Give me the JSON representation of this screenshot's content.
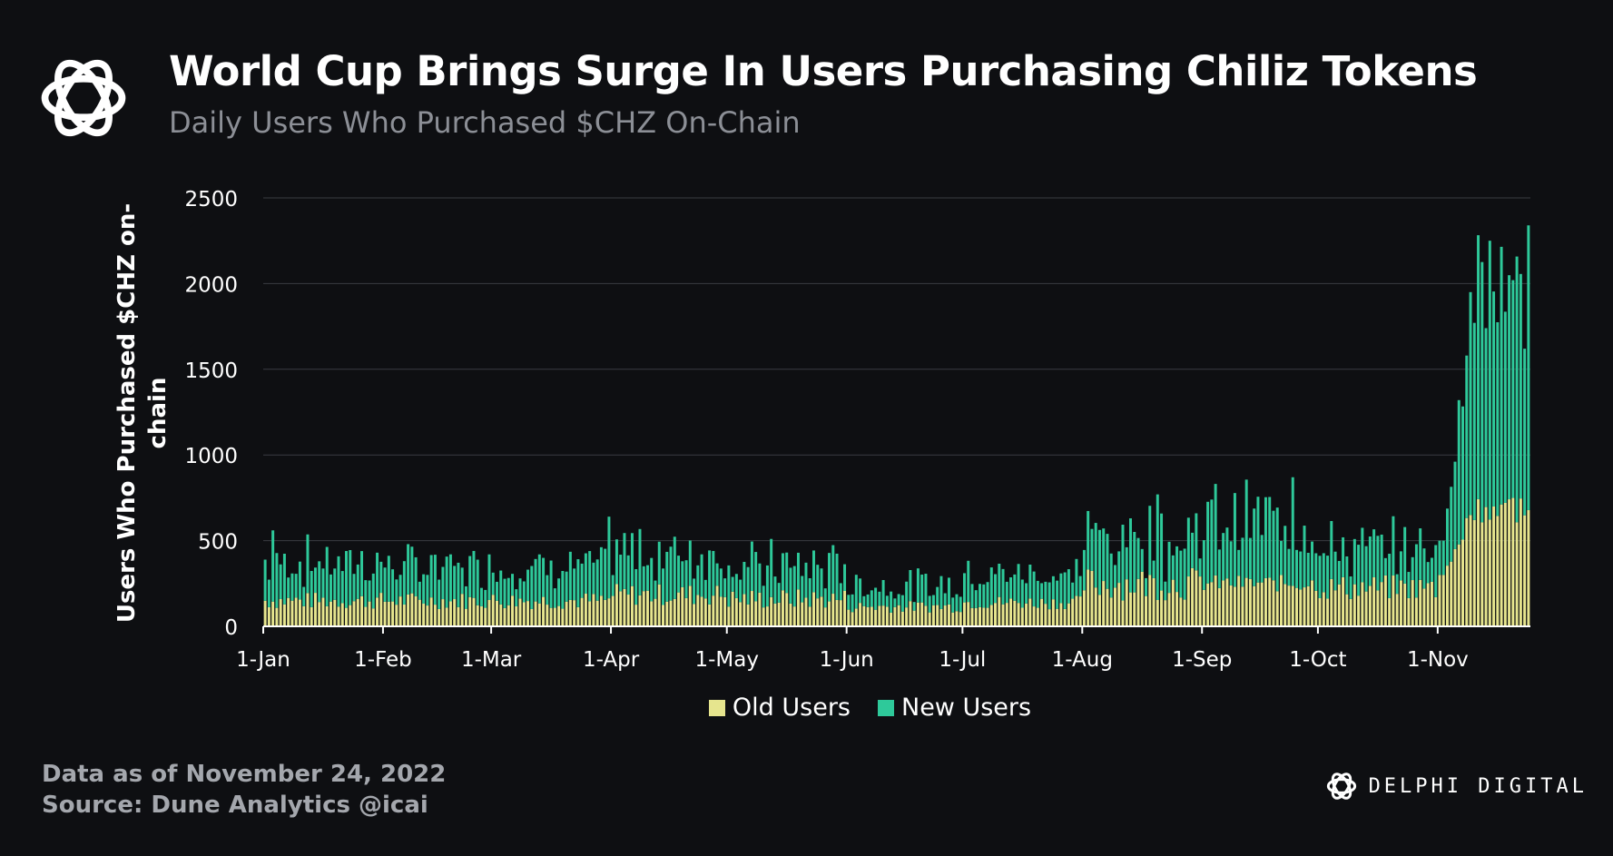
{
  "header": {
    "title": "World Cup Brings Surge In Users Purchasing Chiliz Tokens",
    "subtitle": "Daily Users Who Purchased $CHZ On-Chain"
  },
  "footer": {
    "data_note": "Data as of November 24, 2022",
    "source": "Source: Dune Analytics @icai"
  },
  "brand": {
    "name": "DELPHI DIGITAL"
  },
  "colors": {
    "old_users": "#e6e58e",
    "new_users": "#2ec99a",
    "grid": "#3a3c42",
    "axis_text": "#ffffff"
  },
  "chart_data": {
    "type": "bar",
    "stacked": true,
    "title": "World Cup Brings Surge In Users Purchasing Chiliz Tokens",
    "subtitle": "Daily Users Who Purchased $CHZ On-Chain",
    "xlabel": "",
    "ylabel": "Users Who Purchased $CHZ on-chain",
    "ylabel_lines": [
      "Users Who Purchased $CHZ on-",
      "chain"
    ],
    "x_start": "2022-01-01",
    "x_end": "2022-11-24",
    "x_ticks": [
      "1-Jan",
      "1-Feb",
      "1-Mar",
      "1-Apr",
      "1-May",
      "1-Jun",
      "1-Jul",
      "1-Aug",
      "1-Sep",
      "1-Oct",
      "1-Nov"
    ],
    "x_tick_dates": [
      "2022-01-01",
      "2022-02-01",
      "2022-03-01",
      "2022-04-01",
      "2022-05-01",
      "2022-06-01",
      "2022-07-01",
      "2022-08-01",
      "2022-09-01",
      "2022-10-01",
      "2022-11-01"
    ],
    "y_ticks": [
      0,
      500,
      1000,
      1500,
      2000,
      2500
    ],
    "ylim": [
      0,
      2500
    ],
    "grid": true,
    "legend_position": "bottom",
    "series": [
      {
        "name": "Old Users",
        "color": "#e6e58e",
        "monthly_estimates": [
          {
            "month": "Jan",
            "min": 100,
            "max": 200
          },
          {
            "month": "Feb",
            "min": 100,
            "max": 200
          },
          {
            "month": "Mar",
            "min": 100,
            "max": 200
          },
          {
            "month": "Apr",
            "min": 120,
            "max": 250
          },
          {
            "month": "May",
            "min": 100,
            "max": 220
          },
          {
            "month": "Jun",
            "min": 80,
            "max": 150
          },
          {
            "month": "Jul",
            "min": 100,
            "max": 180
          },
          {
            "month": "Aug",
            "min": 150,
            "max": 350
          },
          {
            "month": "Sep",
            "min": 200,
            "max": 300
          },
          {
            "month": "Oct",
            "min": 150,
            "max": 300
          },
          {
            "month": "Nov",
            "min": 300,
            "max": 780
          }
        ]
      },
      {
        "name": "New Users",
        "color": "#2ec99a",
        "monthly_estimates": [
          {
            "month": "Jan",
            "min": 100,
            "max": 350
          },
          {
            "month": "Feb",
            "min": 100,
            "max": 300
          },
          {
            "month": "Mar",
            "min": 100,
            "max": 300
          },
          {
            "month": "Apr",
            "min": 100,
            "max": 390
          },
          {
            "month": "May",
            "min": 80,
            "max": 300
          },
          {
            "month": "Jun",
            "min": 50,
            "max": 200
          },
          {
            "month": "Jul",
            "min": 80,
            "max": 250
          },
          {
            "month": "Aug",
            "min": 100,
            "max": 450
          },
          {
            "month": "Sep",
            "min": 150,
            "max": 580
          },
          {
            "month": "Oct",
            "min": 100,
            "max": 350
          },
          {
            "month": "Nov",
            "min": 200,
            "max": 1700
          }
        ]
      }
    ],
    "notable_totals": [
      {
        "date": "2022-01-03",
        "total": 560
      },
      {
        "date": "2022-03-31",
        "total": 640
      },
      {
        "date": "2022-05-12",
        "total": 510
      },
      {
        "date": "2022-08-20",
        "total": 770
      },
      {
        "date": "2022-09-24",
        "total": 870
      },
      {
        "date": "2022-11-06",
        "total": 1320
      },
      {
        "date": "2022-11-08",
        "total": 1580
      },
      {
        "date": "2022-11-13",
        "total": 1740
      },
      {
        "date": "2022-11-14",
        "total": 2250
      },
      {
        "date": "2022-11-20",
        "total": 2020
      },
      {
        "date": "2022-11-23",
        "total": 1620
      }
    ]
  }
}
